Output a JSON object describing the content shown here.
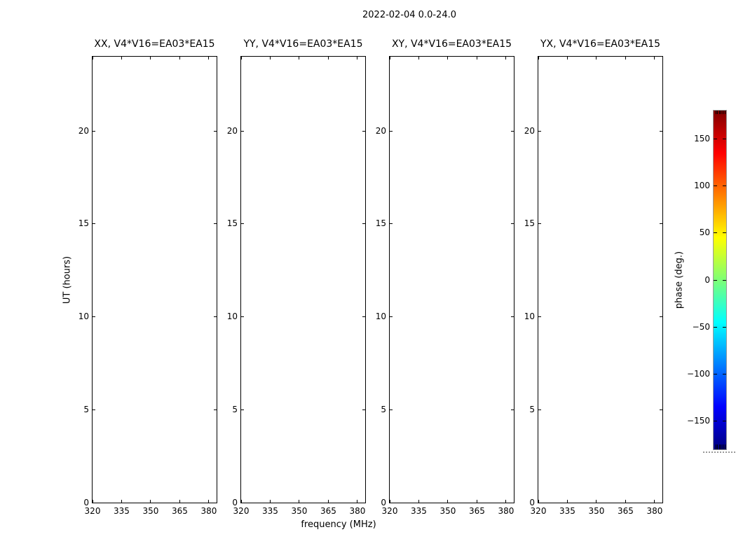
{
  "figure_title": "2022-02-04 0.0-24.0",
  "panels": [
    {
      "title": "XX, V4*V16=EA03*EA15"
    },
    {
      "title": "YY, V4*V16=EA03*EA15"
    },
    {
      "title": "XY, V4*V16=EA03*EA15"
    },
    {
      "title": "YX, V4*V16=EA03*EA15"
    }
  ],
  "axes": {
    "xlabel": "frequency (MHz)",
    "ylabel": "UT (hours)",
    "x_ticks": [
      320,
      335,
      350,
      365,
      380
    ],
    "y_ticks": [
      0,
      5,
      10,
      15,
      20
    ],
    "xlim": [
      320,
      384
    ],
    "ylim": [
      0,
      24
    ]
  },
  "colorbar": {
    "label": "phase (deg.)",
    "tick_values": [
      150,
      100,
      50,
      0,
      -50,
      -100,
      -150
    ],
    "tick_labels": [
      "150",
      "100",
      "50",
      "0",
      "−50",
      "−100",
      "−150"
    ],
    "range": [
      -180,
      180
    ],
    "colormap": "jet",
    "outline_color": "#999999",
    "jet_stops": [
      "#800000",
      "#ff0000",
      "#ffff00",
      "#7dff76",
      "#00ffff",
      "#0000ff",
      "#000080"
    ]
  },
  "chart_data": {
    "type": "heatmap",
    "title": "2022-02-04 0.0-24.0",
    "panels": [
      "XX, V4*V16=EA03*EA15",
      "YY, V4*V16=EA03*EA15",
      "XY, V4*V16=EA03*EA15",
      "YX, V4*V16=EA03*EA15"
    ],
    "xlabel": "frequency (MHz)",
    "ylabel": "UT (hours)",
    "xlim": [
      320,
      384
    ],
    "ylim": [
      0,
      24
    ],
    "x_ticks": [
      320,
      335,
      350,
      365,
      380
    ],
    "y_ticks": [
      0,
      5,
      10,
      15,
      20
    ],
    "grid": false,
    "values": [],
    "colorbar": {
      "label": "phase (deg.)",
      "range": [
        -180,
        180
      ],
      "ticks": [
        150,
        100,
        50,
        0,
        -50,
        -100,
        -150
      ],
      "colormap": "jet",
      "position": "right"
    }
  }
}
